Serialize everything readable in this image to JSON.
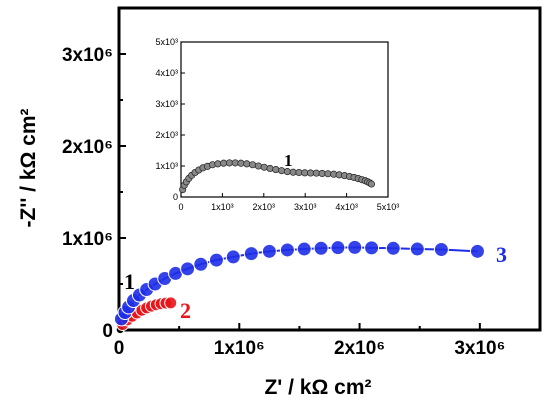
{
  "chart_data": [
    {
      "type": "scatter",
      "title": "",
      "xlabel": "Z' / kΩ cm²",
      "ylabel": "-Z'' / kΩ cm²",
      "xlim": [
        0,
        3500000
      ],
      "ylim": [
        0,
        3500000
      ],
      "x_ticks": [
        {
          "value": 0,
          "label": "0"
        },
        {
          "value": 1000000,
          "label": "1x10⁶"
        },
        {
          "value": 2000000,
          "label": "2x10⁶"
        },
        {
          "value": 3000000,
          "label": "3x10⁶"
        }
      ],
      "y_ticks": [
        {
          "value": 0,
          "label": "0"
        },
        {
          "value": 1000000,
          "label": "1x10⁶"
        },
        {
          "value": 2000000,
          "label": "2x10⁶"
        },
        {
          "value": 3000000,
          "label": "3x10⁶"
        }
      ],
      "grid": false,
      "series": [
        {
          "name": "1",
          "color": "#000000",
          "x": [
            2000,
            5000,
            8000,
            10000
          ],
          "y": [
            1000,
            2500,
            3500,
            4000
          ]
        },
        {
          "name": "2",
          "color": "#e8141a",
          "x": [
            30000,
            70000,
            110000,
            150000,
            190000,
            230000,
            270000,
            310000,
            350000,
            390000,
            430000
          ],
          "y": [
            60000,
            110000,
            150000,
            185000,
            215000,
            240000,
            260000,
            275000,
            285000,
            292000,
            295000
          ]
        },
        {
          "name": "3",
          "color": "#1e2ee8",
          "x": [
            20000,
            50000,
            80000,
            120000,
            170000,
            230000,
            300000,
            380000,
            470000,
            570000,
            680000,
            810000,
            950000,
            1100000,
            1250000,
            1400000,
            1540000,
            1680000,
            1820000,
            1960000,
            2100000,
            2280000,
            2480000,
            2680000,
            2980000
          ],
          "y": [
            120000,
            190000,
            250000,
            320000,
            380000,
            440000,
            500000,
            560000,
            615000,
            665000,
            715000,
            760000,
            795000,
            830000,
            855000,
            870000,
            880000,
            888000,
            895000,
            898000,
            893000,
            888000,
            880000,
            875000,
            855000
          ]
        }
      ],
      "inset": {
        "type": "scatter",
        "xlim": [
          0,
          5000
        ],
        "ylim": [
          0,
          5000
        ],
        "x_ticks": [
          {
            "value": 0,
            "label": "0"
          },
          {
            "value": 1000,
            "label": "1x10³"
          },
          {
            "value": 2000,
            "label": "2x10³"
          },
          {
            "value": 3000,
            "label": "3x10³"
          },
          {
            "value": 4000,
            "label": "4x10³"
          },
          {
            "value": 5000,
            "label": "5x10³"
          }
        ],
        "y_ticks": [
          {
            "value": 0,
            "label": "0"
          },
          {
            "value": 1000,
            "label": "1x10³"
          },
          {
            "value": 2000,
            "label": "2x10³"
          },
          {
            "value": 3000,
            "label": "3x10³"
          },
          {
            "value": 4000,
            "label": "4x10³"
          },
          {
            "value": 5000,
            "label": "5x10³"
          }
        ],
        "series": [
          {
            "name": "1",
            "color": "#888888",
            "x": [
              40,
              80,
              130,
              190,
              260,
              340,
              430,
              530,
              640,
              760,
              890,
              1030,
              1170,
              1310,
              1450,
              1590,
              1730,
              1870,
              2010,
              2150,
              2290,
              2430,
              2570,
              2710,
              2850,
              2990,
              3130,
              3270,
              3410,
              3550,
              3690,
              3820,
              3950,
              4070,
              4180,
              4280,
              4370,
              4450,
              4510,
              4560,
              4600
            ],
            "y": [
              240,
              380,
              490,
              600,
              700,
              790,
              870,
              940,
              990,
              1040,
              1070,
              1090,
              1100,
              1100,
              1090,
              1070,
              1040,
              1000,
              960,
              920,
              885,
              850,
              820,
              800,
              790,
              780,
              775,
              770,
              760,
              750,
              735,
              715,
              690,
              660,
              630,
              595,
              560,
              525,
              490,
              455,
              420
            ]
          }
        ]
      }
    }
  ]
}
